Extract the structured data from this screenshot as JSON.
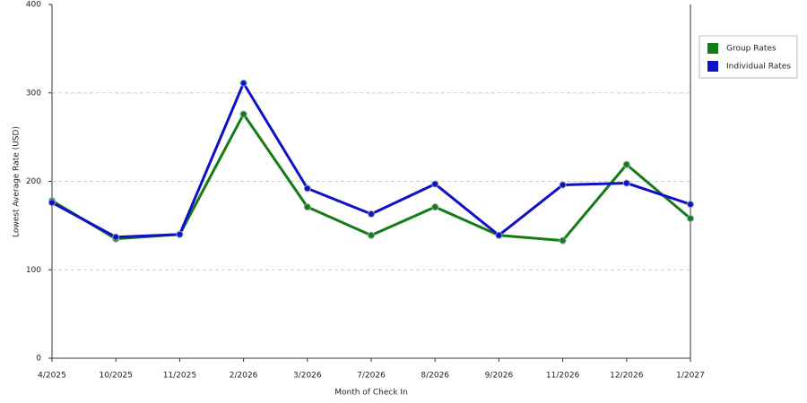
{
  "chart_data": {
    "type": "line",
    "x_label": "Month of Check In",
    "y_label": "Lowest Average Rate (USD)",
    "categories": [
      "4/2025",
      "10/2025",
      "11/2025",
      "2/2026",
      "3/2026",
      "7/2026",
      "8/2026",
      "9/2026",
      "11/2026",
      "12/2026",
      "1/2027"
    ],
    "series": [
      {
        "name": "Group Rates",
        "color": "#137d13",
        "values": [
          178,
          135,
          140,
          276,
          171,
          139,
          171,
          139,
          133,
          219,
          158
        ]
      },
      {
        "name": "Individual Rates",
        "color": "#1010c8",
        "values": [
          176,
          137,
          140,
          311,
          192,
          163,
          197,
          139,
          196,
          198,
          174
        ]
      }
    ],
    "ylim": [
      0,
      400
    ],
    "yticks": [
      0,
      100,
      200,
      300,
      400
    ],
    "grid": true,
    "legend": "right"
  }
}
